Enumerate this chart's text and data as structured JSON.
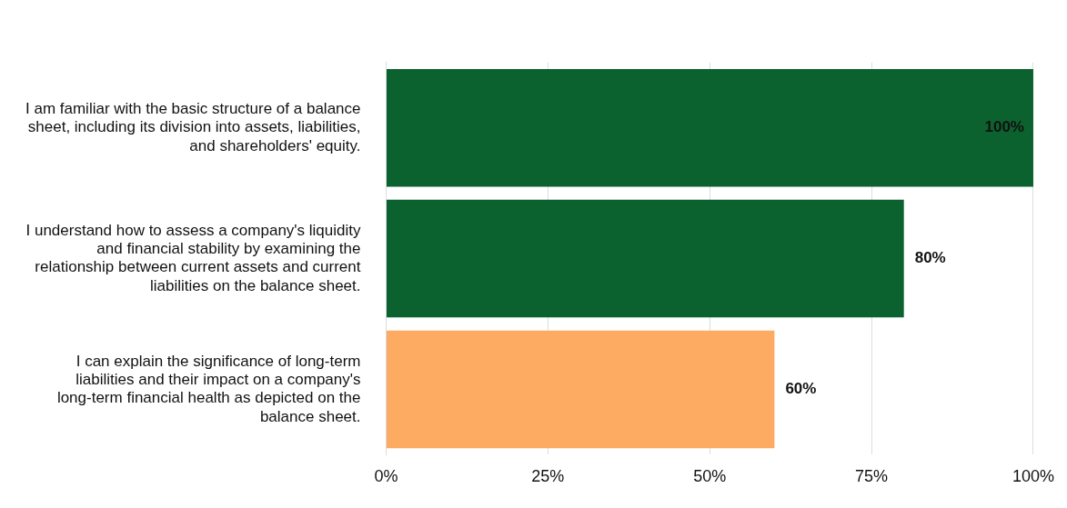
{
  "chart_data": {
    "type": "bar",
    "orientation": "horizontal",
    "categories": [
      "I am familiar with the basic structure of a balance sheet, including its division into assets, liabilities, and shareholders' equity.",
      "I understand how to assess a company's liquidity and financial stability by examining the relationship between current assets and current liabilities on the balance sheet.",
      "I can explain the significance of long-term liabilities and their impact on a company's long-term financial health as depicted on the balance sheet."
    ],
    "values": [
      100,
      80,
      60
    ],
    "colors": [
      "#0b622e",
      "#0b622e",
      "#fdab62"
    ],
    "value_labels": [
      "100%",
      "80%",
      "60%"
    ],
    "xlim": [
      0,
      100
    ],
    "xticks": [
      {
        "value": 0,
        "label": "0%"
      },
      {
        "value": 25,
        "label": "25%"
      },
      {
        "value": 50,
        "label": "50%"
      },
      {
        "value": 75,
        "label": "75%"
      },
      {
        "value": 100,
        "label": "100%"
      }
    ],
    "grid": "x"
  }
}
